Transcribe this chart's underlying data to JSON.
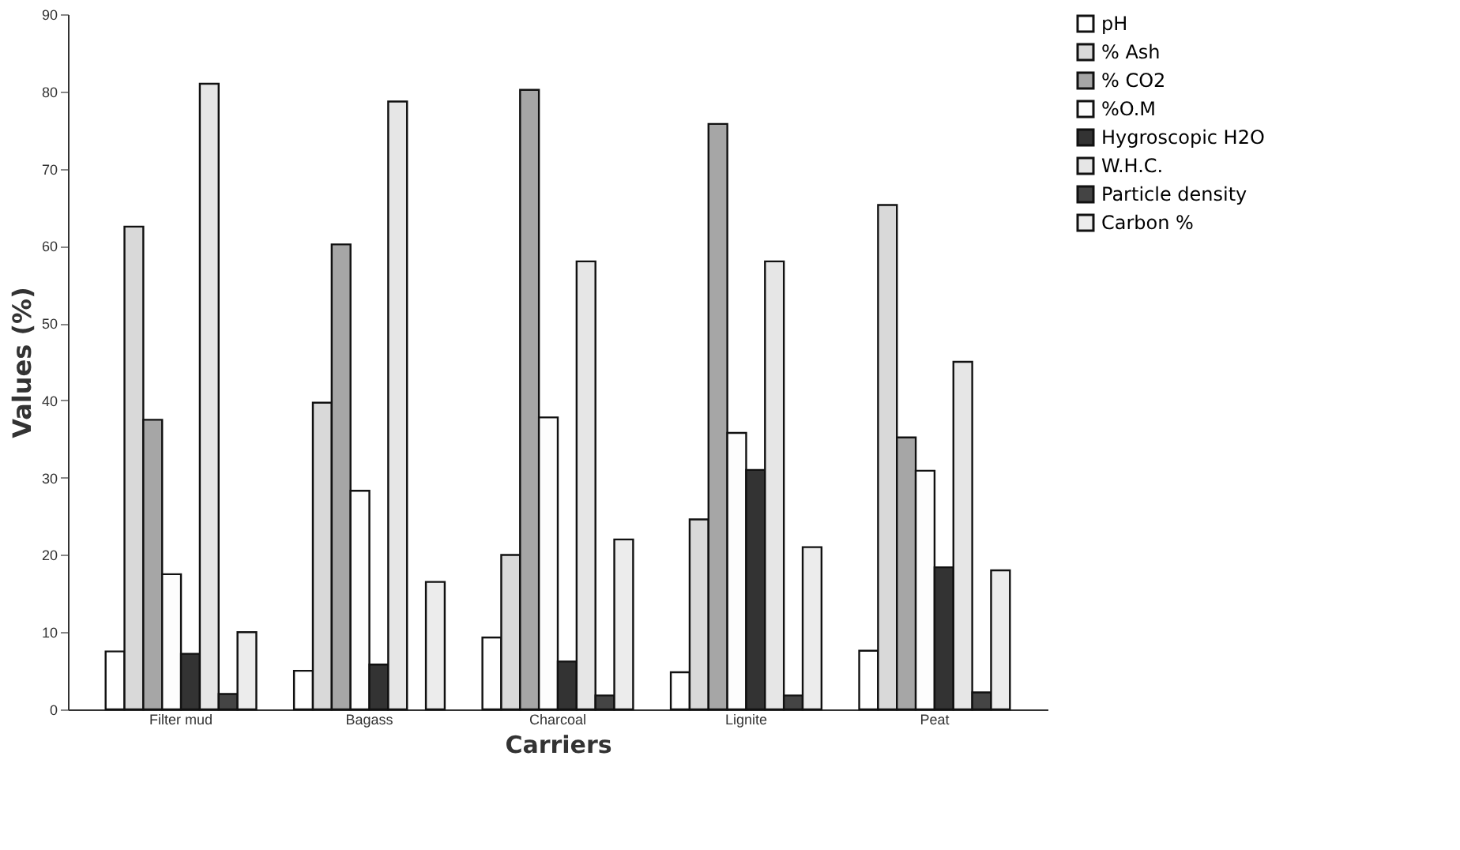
{
  "chart_data": {
    "type": "bar",
    "xlabel": "Carriers",
    "ylabel": "Values (%)",
    "categories": [
      "Filter mud",
      "Bagass",
      "Charcoal",
      "Lignite",
      "Peat"
    ],
    "ylim": [
      0,
      90
    ],
    "yticks": [
      0,
      10,
      20,
      30,
      40,
      50,
      60,
      70,
      80,
      90
    ],
    "grid": false,
    "legend": "right",
    "series": [
      {
        "name": "pH",
        "color": "#ffffff",
        "values": [
          7.5,
          5,
          9.3,
          4.8,
          7.6
        ]
      },
      {
        "name": "% Ash",
        "color": "#d9d9d9",
        "values": [
          62.5,
          39.7,
          20,
          24.6,
          65.3
        ]
      },
      {
        "name": "% CO2",
        "color": "#a6a6a6",
        "values": [
          37.5,
          60.2,
          80.2,
          75.8,
          35.2
        ]
      },
      {
        "name": "%O.M",
        "color": "#fdfdfd",
        "values": [
          17.5,
          28.3,
          37.8,
          35.8,
          30.9
        ]
      },
      {
        "name": "Hygroscopic H2O",
        "color": "#333333",
        "values": [
          7.2,
          5.8,
          6.2,
          31,
          18.4
        ]
      },
      {
        "name": "W.H.C.",
        "color": "#e6e6e6",
        "values": [
          81,
          78.7,
          58,
          58,
          45
        ]
      },
      {
        "name": "Particle density",
        "color": "#444444",
        "values": [
          2,
          null,
          1.8,
          1.8,
          2.2
        ]
      },
      {
        "name": "Carbon %",
        "color": "#ececec",
        "values": [
          10,
          16.5,
          22,
          21,
          18
        ]
      }
    ]
  }
}
